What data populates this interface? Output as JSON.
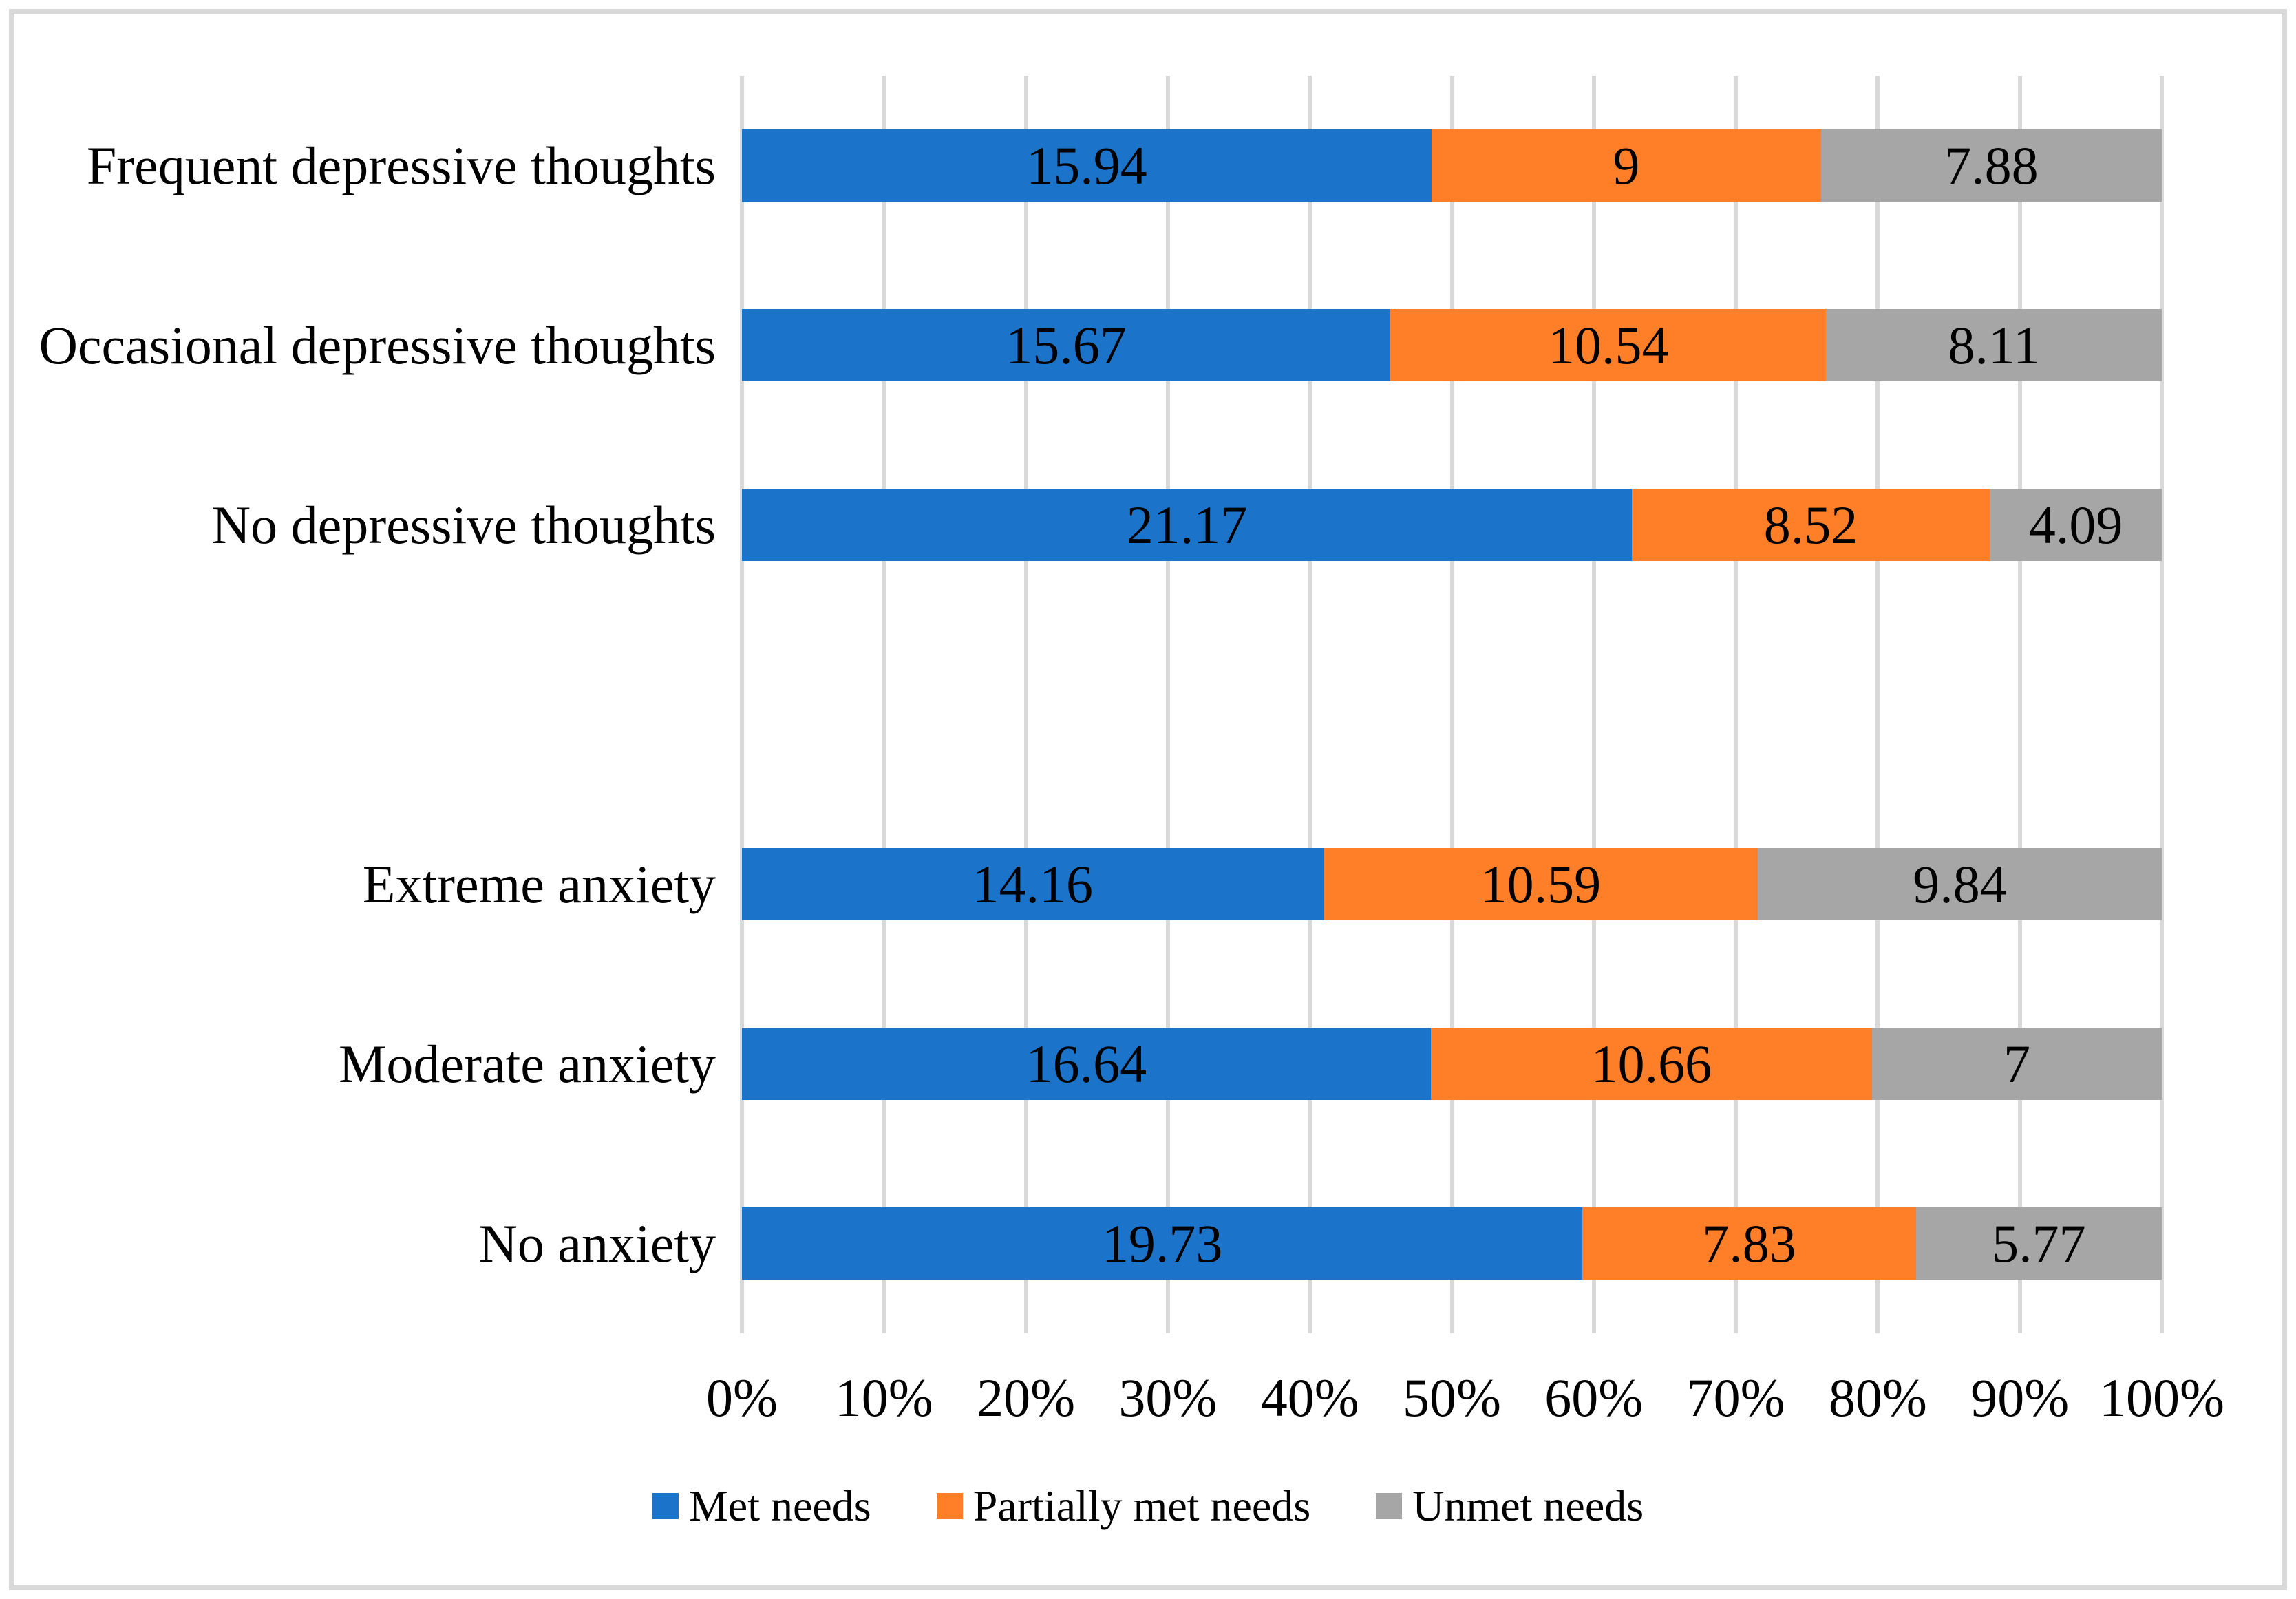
{
  "chart_data": {
    "type": "bar",
    "orientation": "horizontal",
    "stacked": "percent",
    "title": "",
    "xlabel": "",
    "ylabel": "",
    "categories": [
      "Frequent depressive thoughts",
      "Occasional depressive thoughts",
      "No depressive thoughts",
      "",
      "Extreme anxiety",
      "Moderate anxiety",
      "No anxiety"
    ],
    "series": [
      {
        "name": "Met needs",
        "color": "#1B74C9",
        "values": [
          15.94,
          15.67,
          21.17,
          null,
          14.16,
          16.64,
          19.73
        ]
      },
      {
        "name": "Partially met needs",
        "color": "#FF7E28",
        "values": [
          9,
          10.54,
          8.52,
          null,
          10.59,
          10.66,
          7.83
        ]
      },
      {
        "name": "Unmet needs",
        "color": "#A6A6A6",
        "values": [
          7.88,
          8.11,
          4.09,
          null,
          9.84,
          7,
          5.77
        ]
      }
    ],
    "x_axis": {
      "tick_labels": [
        "0%",
        "10%",
        "20%",
        "30%",
        "40%",
        "50%",
        "60%",
        "70%",
        "80%",
        "90%",
        "100%"
      ],
      "range_percent": [
        0,
        100
      ]
    },
    "legend": {
      "position": "bottom",
      "entries": [
        "Met needs",
        "Partially met needs",
        "Unmet needs"
      ]
    },
    "grid": {
      "vertical": true,
      "color": "#D9D9D9"
    },
    "frame_color": "#D9D9D9",
    "text_color": "#000000",
    "background_color": "#FFFFFF"
  }
}
